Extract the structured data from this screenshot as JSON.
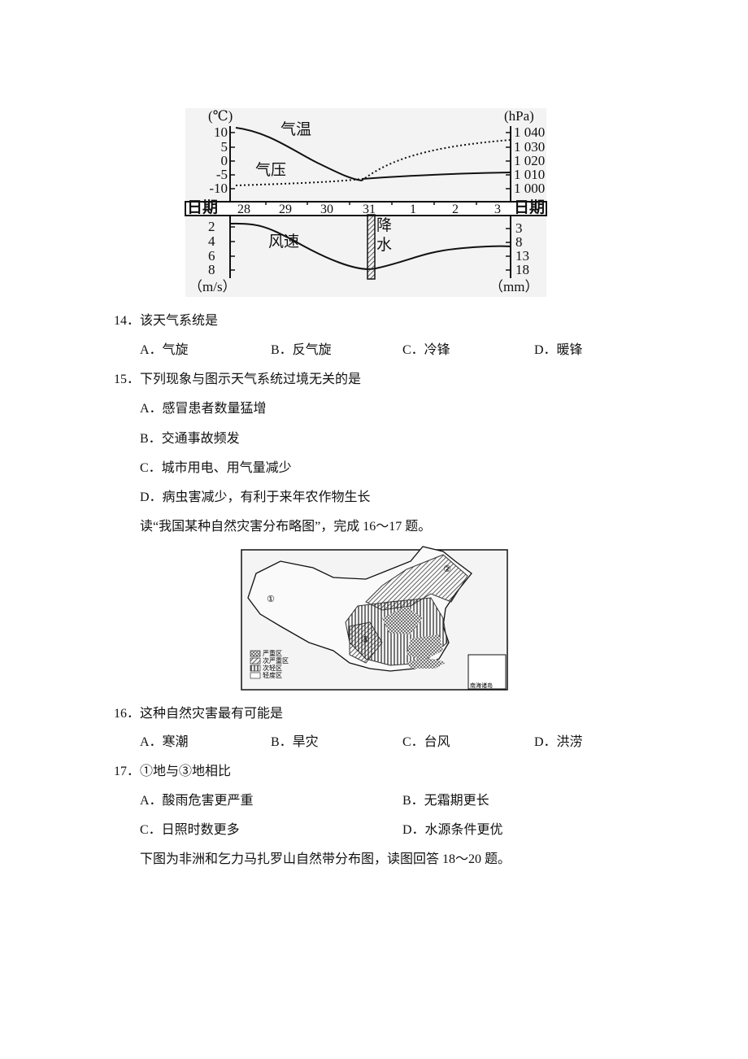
{
  "figure1": {
    "left_unit": "(℃)",
    "right_unit": "(hPa)",
    "left_ticks": [
      "10",
      "5",
      "0",
      "-5",
      "-10"
    ],
    "right_ticks": [
      "1 040",
      "1 030",
      "1 020",
      "1 010",
      "1 000"
    ],
    "temp_label": "气温",
    "pressure_label": "气压",
    "date_label": "日期",
    "dates": [
      "28",
      "29",
      "30",
      "31",
      "1",
      "2",
      "3"
    ],
    "wind_label": "风速",
    "precip_label": "降水",
    "wind_ticks": [
      "2",
      "4",
      "6",
      "8"
    ],
    "precip_ticks": [
      "3",
      "8",
      "13",
      "18"
    ],
    "wind_unit": "（m/s）",
    "precip_unit": "（mm）"
  },
  "q14": {
    "number": "14．",
    "text": "该天气系统是",
    "options": [
      "A．气旋",
      "B．反气旋",
      "C．冷锋",
      "D．暖锋"
    ]
  },
  "q15": {
    "number": "15．",
    "text": "下列现象与图示天气系统过境无关的是",
    "options": [
      "A．感冒患者数量猛增",
      "B．交通事故频发",
      "C．城市用电、用气量减少",
      "D．病虫害减少，有利于来年农作物生长"
    ]
  },
  "intro_16_17": "读“我国某种自然灾害分布略图”，完成 16～17 题。",
  "map": {
    "legend": [
      "严重区",
      "次严重区",
      "次轻区",
      "轻度区"
    ],
    "markers": [
      "①",
      "②",
      "③"
    ],
    "inset": "南海诸岛"
  },
  "q16": {
    "number": "16．",
    "text": "这种自然灾害最有可能是",
    "options": [
      "A．寒潮",
      "B．旱灾",
      "C．台风",
      "D．洪涝"
    ]
  },
  "q17": {
    "number": "17．",
    "text": "①地与③地相比",
    "options": [
      "A．酸雨危害更严重",
      "B．无霜期更长",
      "C．日照时数更多",
      "D．水源条件更优"
    ]
  },
  "intro_18_20": "下图为非洲和乞力马扎罗山自然带分布图，读图回答 18～20 题。"
}
